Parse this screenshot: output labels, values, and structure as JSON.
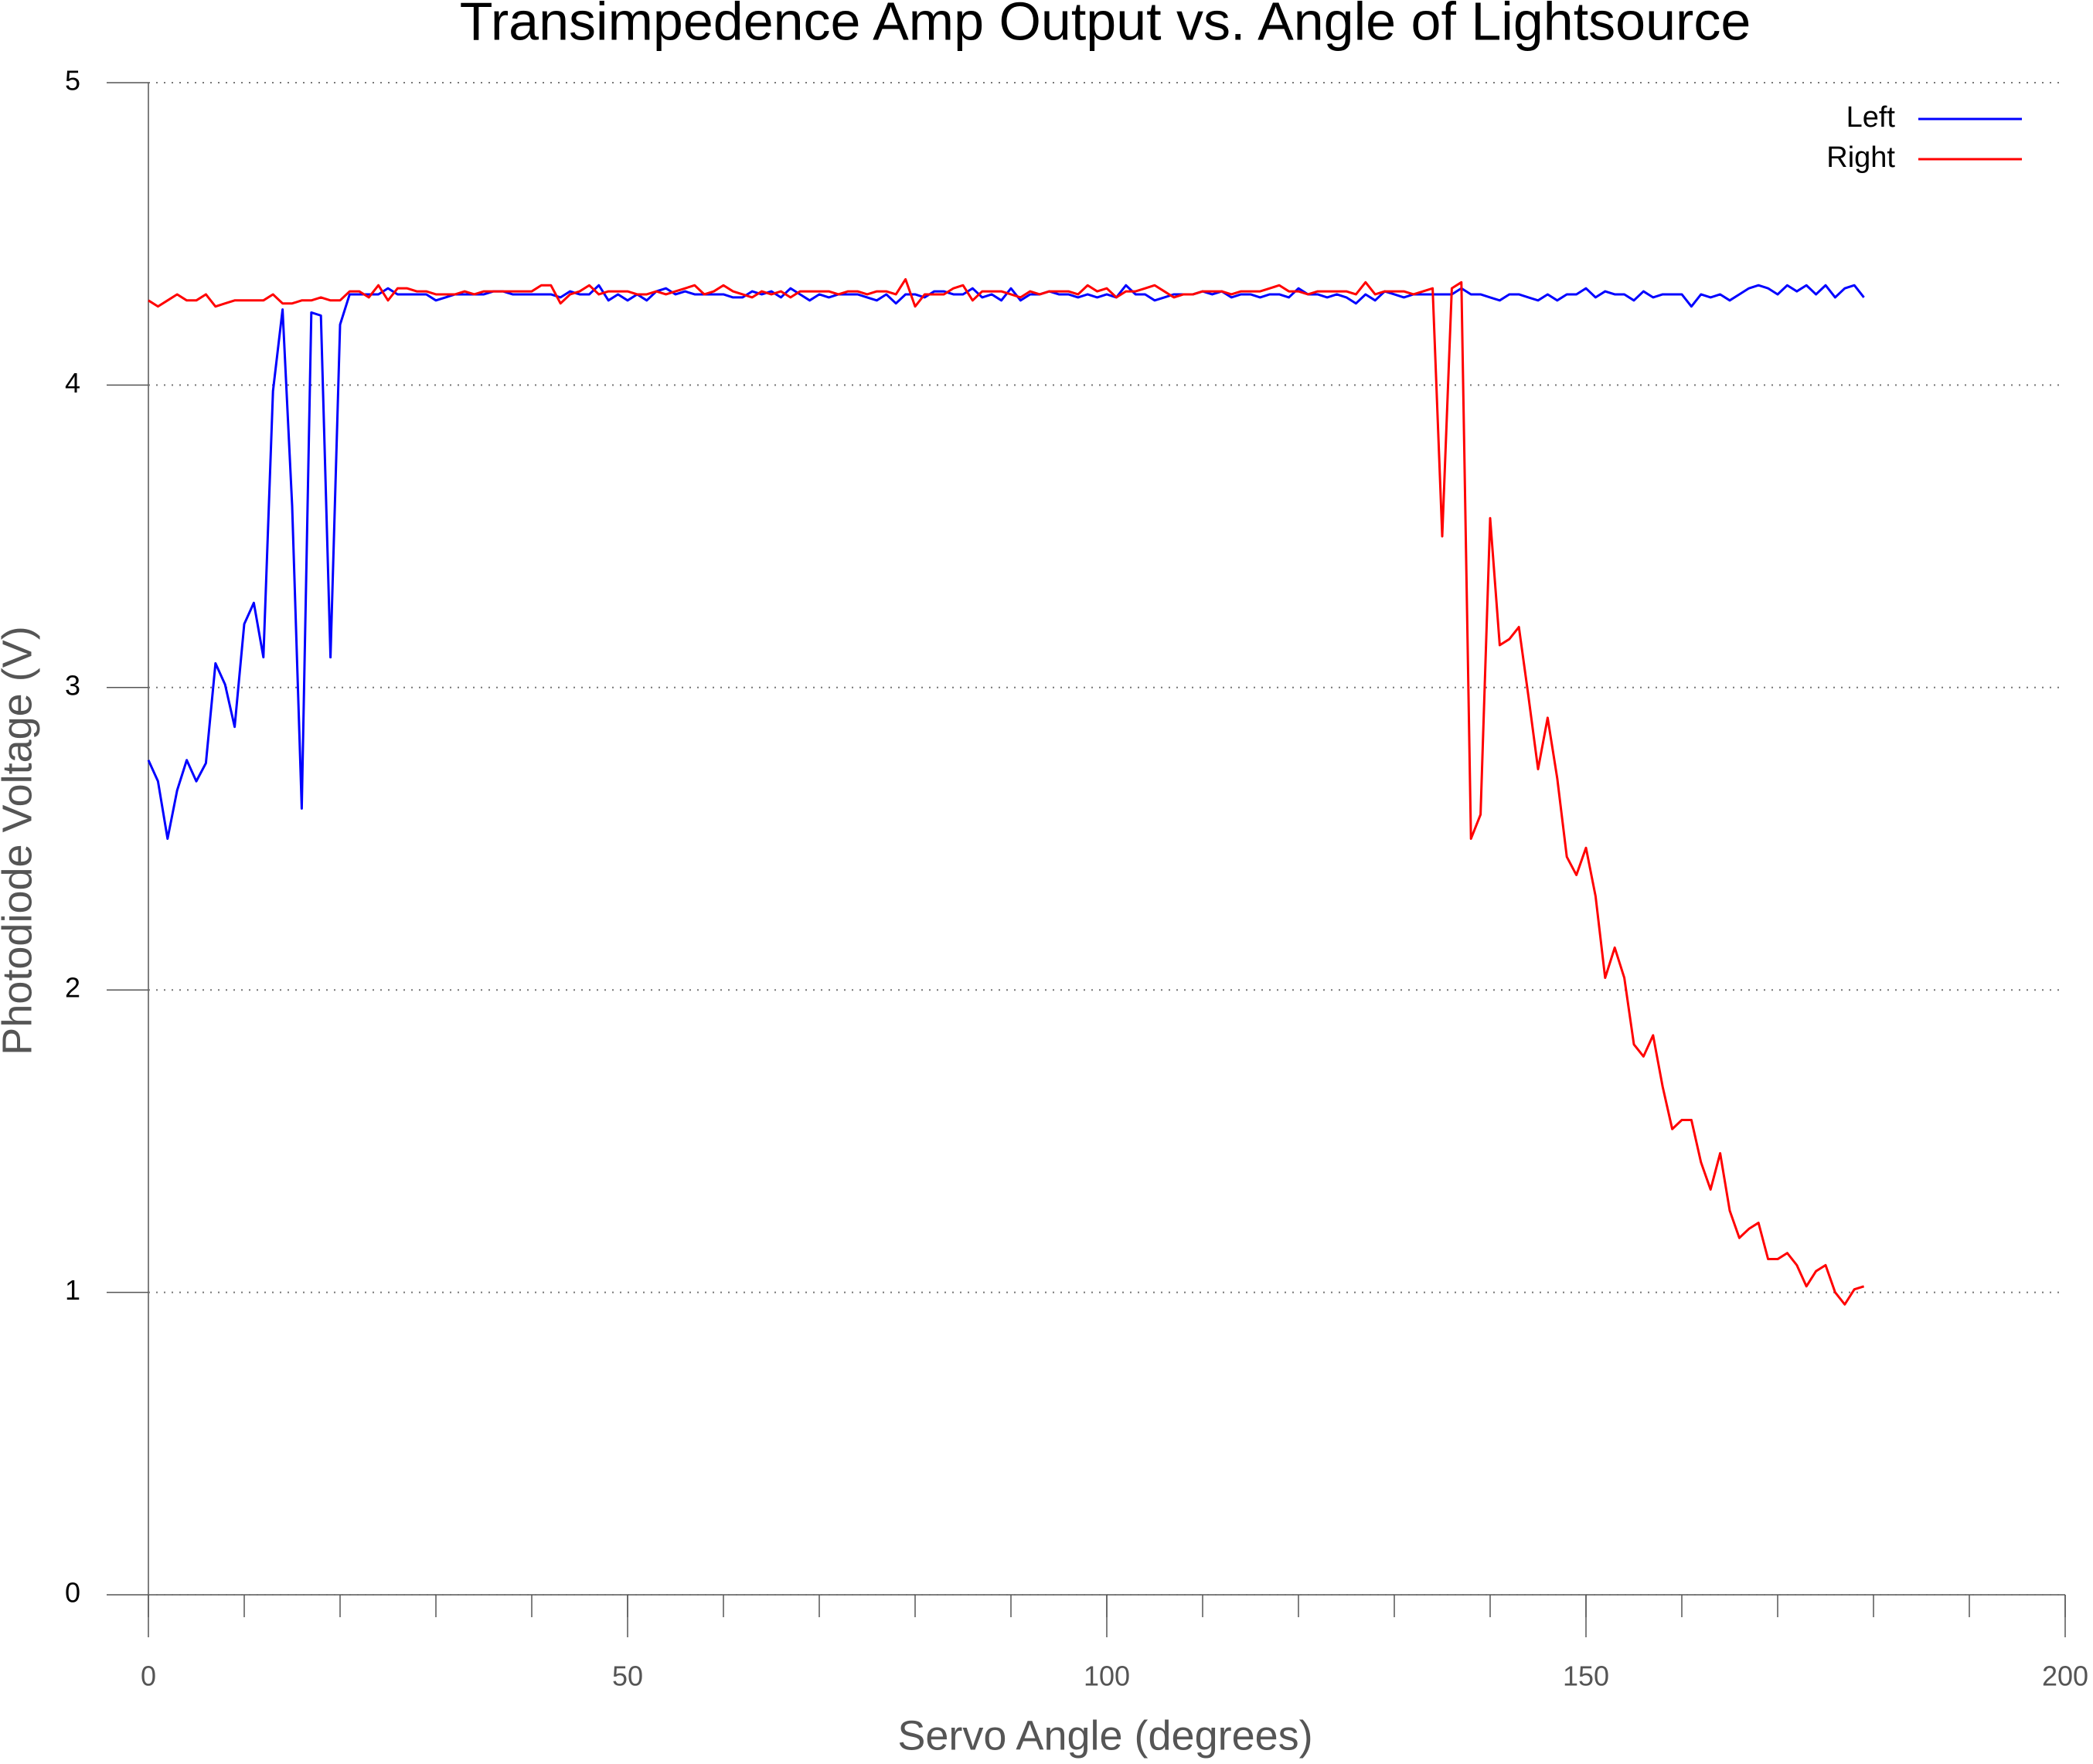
{
  "chart_data": {
    "type": "line",
    "title": "Transimpedence Amp Output vs. Angle of Lightsource",
    "xlabel": "Servo Angle (degrees)",
    "ylabel": "Photodiode Voltage (V)",
    "x": [
      0,
      1,
      2,
      3,
      4,
      5,
      6,
      7,
      8,
      9,
      10,
      11,
      12,
      13,
      14,
      15,
      16,
      17,
      18,
      19,
      20,
      21,
      22,
      23,
      24,
      25,
      26,
      27,
      28,
      29,
      30,
      31,
      32,
      33,
      34,
      35,
      36,
      37,
      38,
      39,
      40,
      41,
      42,
      43,
      44,
      45,
      46,
      47,
      48,
      49,
      50,
      51,
      52,
      53,
      54,
      55,
      56,
      57,
      58,
      59,
      60,
      61,
      62,
      63,
      64,
      65,
      66,
      67,
      68,
      69,
      70,
      71,
      72,
      73,
      74,
      75,
      76,
      77,
      78,
      79,
      80,
      81,
      82,
      83,
      84,
      85,
      86,
      87,
      88,
      89,
      90,
      91,
      92,
      93,
      94,
      95,
      96,
      97,
      98,
      99,
      100,
      101,
      102,
      103,
      104,
      105,
      106,
      107,
      108,
      109,
      110,
      111,
      112,
      113,
      114,
      115,
      116,
      117,
      118,
      119,
      120,
      121,
      122,
      123,
      124,
      125,
      126,
      127,
      128,
      129,
      130,
      131,
      132,
      133,
      134,
      135,
      136,
      137,
      138,
      139,
      140,
      141,
      142,
      143,
      144,
      145,
      146,
      147,
      148,
      149,
      150,
      151,
      152,
      153,
      154,
      155,
      156,
      157,
      158,
      159,
      160,
      161,
      162,
      163,
      164,
      165,
      166,
      167,
      168,
      169,
      170,
      171,
      172,
      173,
      174,
      175,
      176,
      177,
      178,
      179
    ],
    "series": [
      {
        "name": "Left",
        "color": "#0000ff",
        "values": [
          2.76,
          2.69,
          2.5,
          2.66,
          2.76,
          2.69,
          2.75,
          3.08,
          3.01,
          2.87,
          3.21,
          3.28,
          3.1,
          3.98,
          4.25,
          3.6,
          2.6,
          4.24,
          4.23,
          3.1,
          4.2,
          4.3,
          4.3,
          4.3,
          4.3,
          4.32,
          4.3,
          4.3,
          4.3,
          4.3,
          4.28,
          4.29,
          4.3,
          4.3,
          4.3,
          4.3,
          4.31,
          4.31,
          4.3,
          4.3,
          4.3,
          4.3,
          4.3,
          4.29,
          4.31,
          4.3,
          4.3,
          4.33,
          4.28,
          4.3,
          4.28,
          4.3,
          4.28,
          4.31,
          4.32,
          4.3,
          4.31,
          4.3,
          4.3,
          4.3,
          4.3,
          4.29,
          4.29,
          4.31,
          4.3,
          4.31,
          4.29,
          4.32,
          4.3,
          4.28,
          4.3,
          4.29,
          4.3,
          4.3,
          4.3,
          4.29,
          4.28,
          4.3,
          4.27,
          4.3,
          4.3,
          4.29,
          4.31,
          4.31,
          4.3,
          4.3,
          4.32,
          4.29,
          4.3,
          4.28,
          4.32,
          4.28,
          4.3,
          4.3,
          4.31,
          4.3,
          4.3,
          4.29,
          4.3,
          4.29,
          4.3,
          4.29,
          4.33,
          4.3,
          4.3,
          4.28,
          4.29,
          4.3,
          4.3,
          4.3,
          4.31,
          4.3,
          4.31,
          4.29,
          4.3,
          4.3,
          4.29,
          4.3,
          4.3,
          4.29,
          4.32,
          4.3,
          4.3,
          4.29,
          4.3,
          4.29,
          4.27,
          4.3,
          4.28,
          4.31,
          4.3,
          4.29,
          4.3,
          4.3,
          4.3,
          4.3,
          4.3,
          4.32,
          4.3,
          4.3,
          4.29,
          4.28,
          4.3,
          4.3,
          4.29,
          4.28,
          4.3,
          4.28,
          4.3,
          4.3,
          4.32,
          4.29,
          4.31,
          4.3,
          4.3,
          4.28,
          4.31,
          4.29,
          4.3,
          4.3,
          4.3,
          4.26,
          4.3,
          4.29,
          4.3,
          4.28,
          4.3,
          4.32,
          4.33,
          4.32,
          4.3,
          4.33,
          4.31,
          4.33,
          4.3,
          4.33,
          4.29,
          4.32,
          4.33,
          4.29
        ]
      },
      {
        "name": "Right",
        "color": "#ff0000",
        "values": [
          4.28,
          4.26,
          4.28,
          4.3,
          4.28,
          4.28,
          4.3,
          4.26,
          4.27,
          4.28,
          4.28,
          4.28,
          4.28,
          4.3,
          4.27,
          4.27,
          4.28,
          4.28,
          4.29,
          4.28,
          4.28,
          4.31,
          4.31,
          4.29,
          4.33,
          4.28,
          4.32,
          4.32,
          4.31,
          4.31,
          4.3,
          4.3,
          4.3,
          4.31,
          4.3,
          4.31,
          4.31,
          4.31,
          4.31,
          4.31,
          4.31,
          4.33,
          4.33,
          4.27,
          4.3,
          4.31,
          4.33,
          4.3,
          4.31,
          4.31,
          4.31,
          4.3,
          4.3,
          4.31,
          4.3,
          4.31,
          4.32,
          4.33,
          4.3,
          4.31,
          4.33,
          4.31,
          4.3,
          4.29,
          4.31,
          4.3,
          4.31,
          4.29,
          4.31,
          4.31,
          4.31,
          4.31,
          4.3,
          4.31,
          4.31,
          4.3,
          4.31,
          4.31,
          4.3,
          4.35,
          4.26,
          4.3,
          4.3,
          4.3,
          4.32,
          4.33,
          4.28,
          4.31,
          4.31,
          4.31,
          4.3,
          4.29,
          4.31,
          4.3,
          4.31,
          4.31,
          4.31,
          4.3,
          4.33,
          4.31,
          4.32,
          4.29,
          4.31,
          4.31,
          4.32,
          4.33,
          4.31,
          4.29,
          4.3,
          4.3,
          4.31,
          4.31,
          4.31,
          4.3,
          4.31,
          4.31,
          4.31,
          4.32,
          4.33,
          4.31,
          4.31,
          4.3,
          4.31,
          4.31,
          4.31,
          4.31,
          4.3,
          4.34,
          4.3,
          4.31,
          4.31,
          4.31,
          4.3,
          4.31,
          4.32,
          3.5,
          4.32,
          4.34,
          2.5,
          2.58,
          3.56,
          3.14,
          3.16,
          3.2,
          2.97,
          2.73,
          2.9,
          2.7,
          2.44,
          2.38,
          2.47,
          2.31,
          2.04,
          2.14,
          2.04,
          1.82,
          1.78,
          1.85,
          1.68,
          1.54,
          1.57,
          1.57,
          1.43,
          1.34,
          1.46,
          1.27,
          1.18,
          1.21,
          1.23,
          1.11,
          1.11,
          1.13,
          1.09,
          1.02,
          1.07,
          1.09,
          1.0,
          0.96,
          1.01,
          1.02
        ]
      }
    ],
    "xlim": [
      0,
      200
    ],
    "xticks": [
      0,
      50,
      100,
      150,
      200
    ],
    "xminorticks": [
      0,
      10,
      20,
      30,
      40,
      50,
      60,
      70,
      80,
      90,
      100,
      110,
      120,
      130,
      140,
      150,
      160,
      170,
      180,
      190,
      200
    ],
    "ylim": [
      0,
      5
    ],
    "yticks": [
      0,
      1,
      2,
      3,
      4,
      5
    ],
    "grid": true,
    "legend": "upper right"
  }
}
